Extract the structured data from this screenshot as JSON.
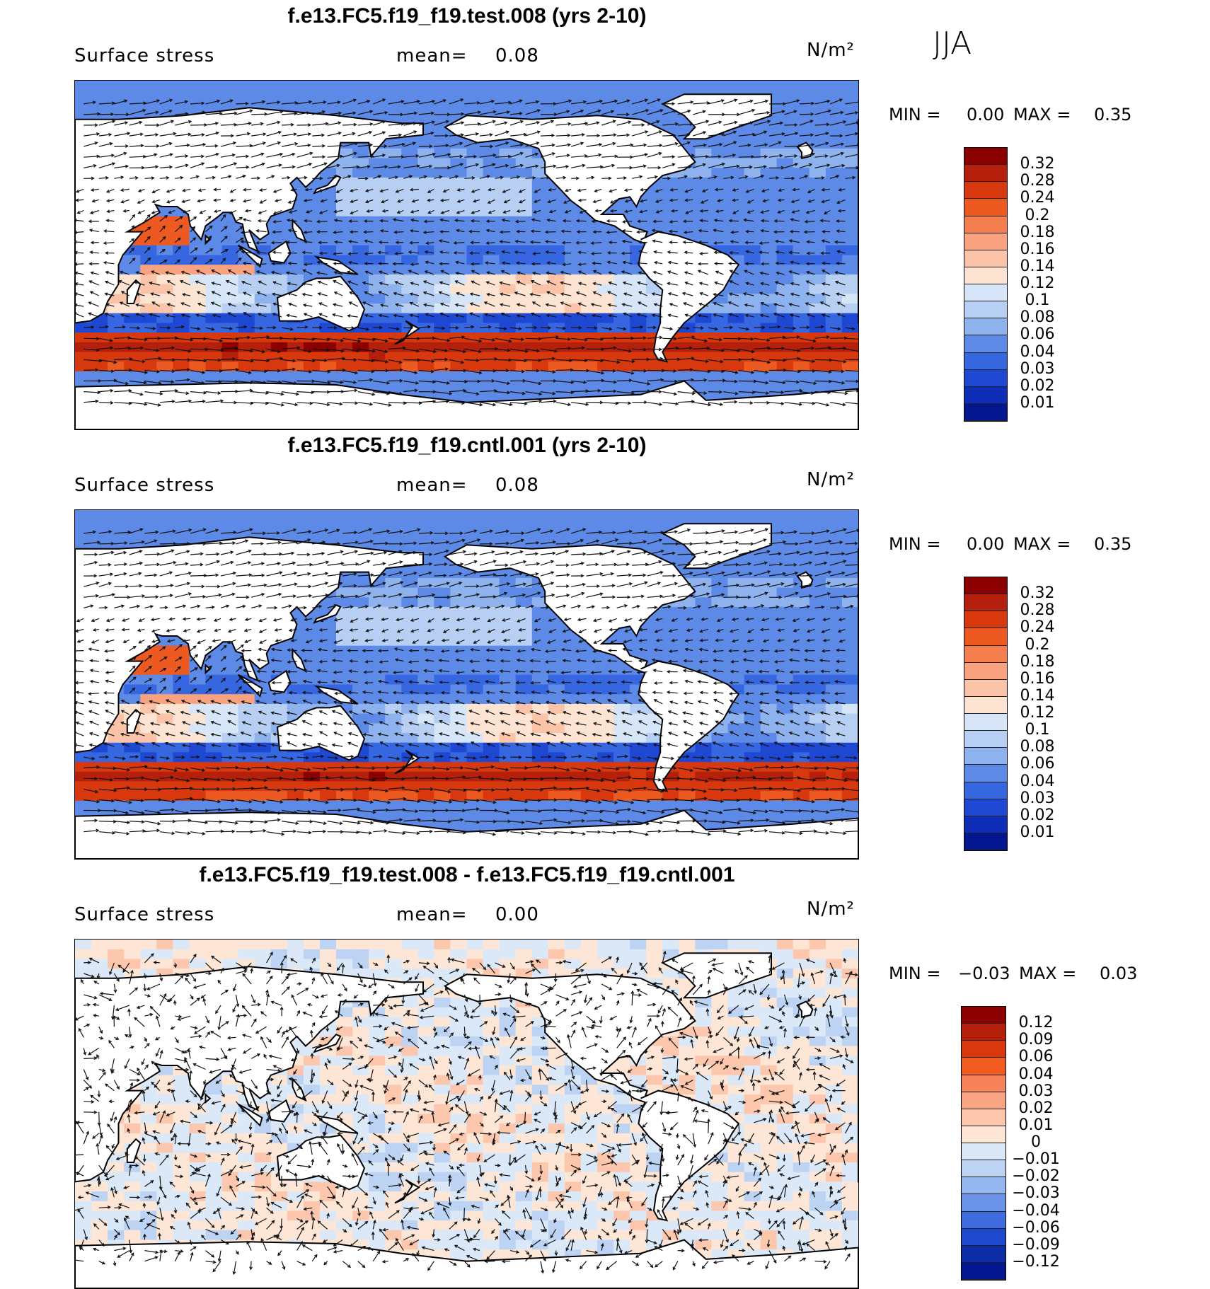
{
  "season": "JJA",
  "panels": [
    {
      "title": "f.e13.FC5.f19_f19.test.008 (yrs 2-10)",
      "variable": "Surface stress",
      "mean_label": "mean=",
      "mean_value": "0.08",
      "units": "N/m²",
      "min_label": "MIN =",
      "min_value": "0.00",
      "max_label": "MAX =",
      "max_value": "0.35",
      "levels": [
        "0.32",
        "0.28",
        "0.24",
        "0.2",
        "0.18",
        "0.16",
        "0.14",
        "0.12",
        "0.1",
        "0.08",
        "0.06",
        "0.04",
        "0.03",
        "0.02",
        "0.01"
      ],
      "colors": [
        "#8b0000",
        "#b5200c",
        "#d8380e",
        "#ec5a22",
        "#f57e4e",
        "#f9a27f",
        "#fbc4a8",
        "#fde4d2",
        "#d6e6f8",
        "#b6cff3",
        "#8eb2ee",
        "#5d8ae6",
        "#3666e0",
        "#1f48d2",
        "#0e2eb8",
        "#04168e"
      ]
    },
    {
      "title": "f.e13.FC5.f19_f19.cntl.001 (yrs 2-10)",
      "variable": "Surface stress",
      "mean_label": "mean=",
      "mean_value": "0.08",
      "units": "N/m²",
      "min_label": "MIN =",
      "min_value": "0.00",
      "max_label": "MAX =",
      "max_value": "0.35",
      "levels": [
        "0.32",
        "0.28",
        "0.24",
        "0.2",
        "0.18",
        "0.16",
        "0.14",
        "0.12",
        "0.1",
        "0.08",
        "0.06",
        "0.04",
        "0.03",
        "0.02",
        "0.01"
      ],
      "colors": [
        "#8b0000",
        "#b5200c",
        "#d8380e",
        "#ec5a22",
        "#f57e4e",
        "#f9a27f",
        "#fbc4a8",
        "#fde4d2",
        "#d6e6f8",
        "#b6cff3",
        "#8eb2ee",
        "#5d8ae6",
        "#3666e0",
        "#1f48d2",
        "#0e2eb8",
        "#04168e"
      ]
    },
    {
      "title": "f.e13.FC5.f19_f19.test.008 - f.e13.FC5.f19_f19.cntl.001",
      "variable": "Surface stress",
      "mean_label": "mean=",
      "mean_value": "0.00",
      "units": "N/m²",
      "min_label": "MIN =",
      "min_value": "−0.03",
      "max_label": "MAX =",
      "max_value": "0.03",
      "levels": [
        "0.12",
        "0.09",
        "0.06",
        "0.04",
        "0.03",
        "0.02",
        "0.01",
        "0",
        "−0.01",
        "−0.02",
        "−0.03",
        "−0.04",
        "−0.06",
        "−0.09",
        "−0.12"
      ],
      "colors": [
        "#8b0000",
        "#b5200c",
        "#d8380e",
        "#f25a1e",
        "#f58258",
        "#f9a584",
        "#fcc7ad",
        "#fde6d6",
        "#dbe8f8",
        "#bcd3f3",
        "#95b6ee",
        "#6b94e8",
        "#3f6de0",
        "#2049cf",
        "#0c2ca8",
        "#04168e"
      ]
    }
  ]
}
